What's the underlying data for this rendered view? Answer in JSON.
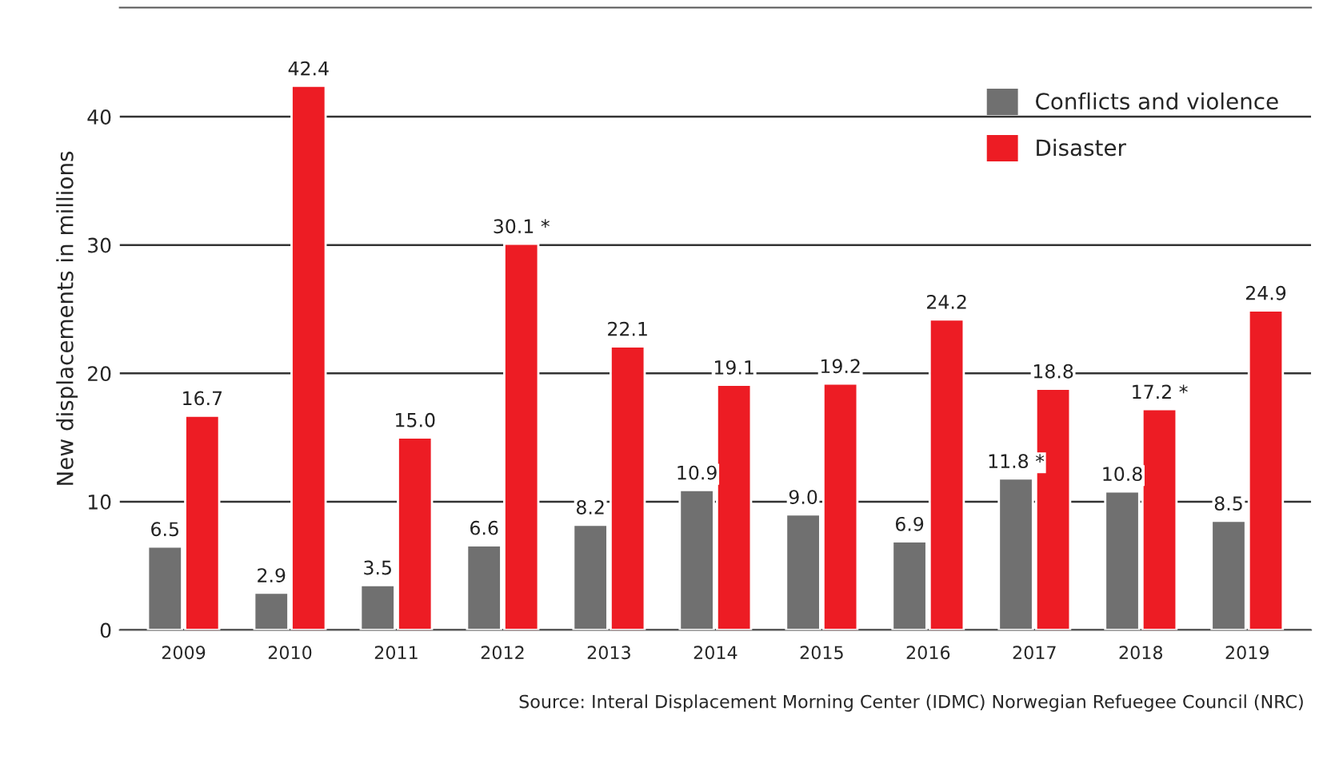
{
  "chart_data": {
    "type": "bar",
    "ylabel": "New displacements in millions",
    "categories": [
      "2009",
      "2010",
      "2011",
      "2012",
      "2013",
      "2014",
      "2015",
      "2016",
      "2017",
      "2018",
      "2019"
    ],
    "series": [
      {
        "name": "Conflicts and violence",
        "color": "#707070",
        "values": [
          6.5,
          2.9,
          3.5,
          6.6,
          8.2,
          10.9,
          9.0,
          6.9,
          11.8,
          10.8,
          8.5
        ],
        "value_labels": [
          "6.5",
          "2.9",
          "3.5",
          "6.6",
          "8.2",
          "10.9",
          "9.0",
          "6.9",
          "11.8 *",
          "10.8",
          "8.5"
        ]
      },
      {
        "name": "Disaster",
        "color": "#ed1c24",
        "values": [
          16.7,
          42.4,
          15.0,
          30.1,
          22.1,
          19.1,
          19.2,
          24.2,
          18.8,
          17.2,
          24.9
        ],
        "value_labels": [
          "16.7",
          "42.4",
          "15.0",
          "30.1 *",
          "22.1",
          "19.1",
          "19.2",
          "24.2",
          "18.8",
          "17.2 *",
          "24.9"
        ]
      }
    ],
    "ylim": [
      0,
      48.5
    ],
    "yticks": [
      0,
      10,
      20,
      30,
      40
    ],
    "grid": "y",
    "legend": "top right",
    "annotations": [
      "Source: Interal Displacement Morning Center (IDMC) Norwegian Refuegee Council (NRC)"
    ]
  }
}
